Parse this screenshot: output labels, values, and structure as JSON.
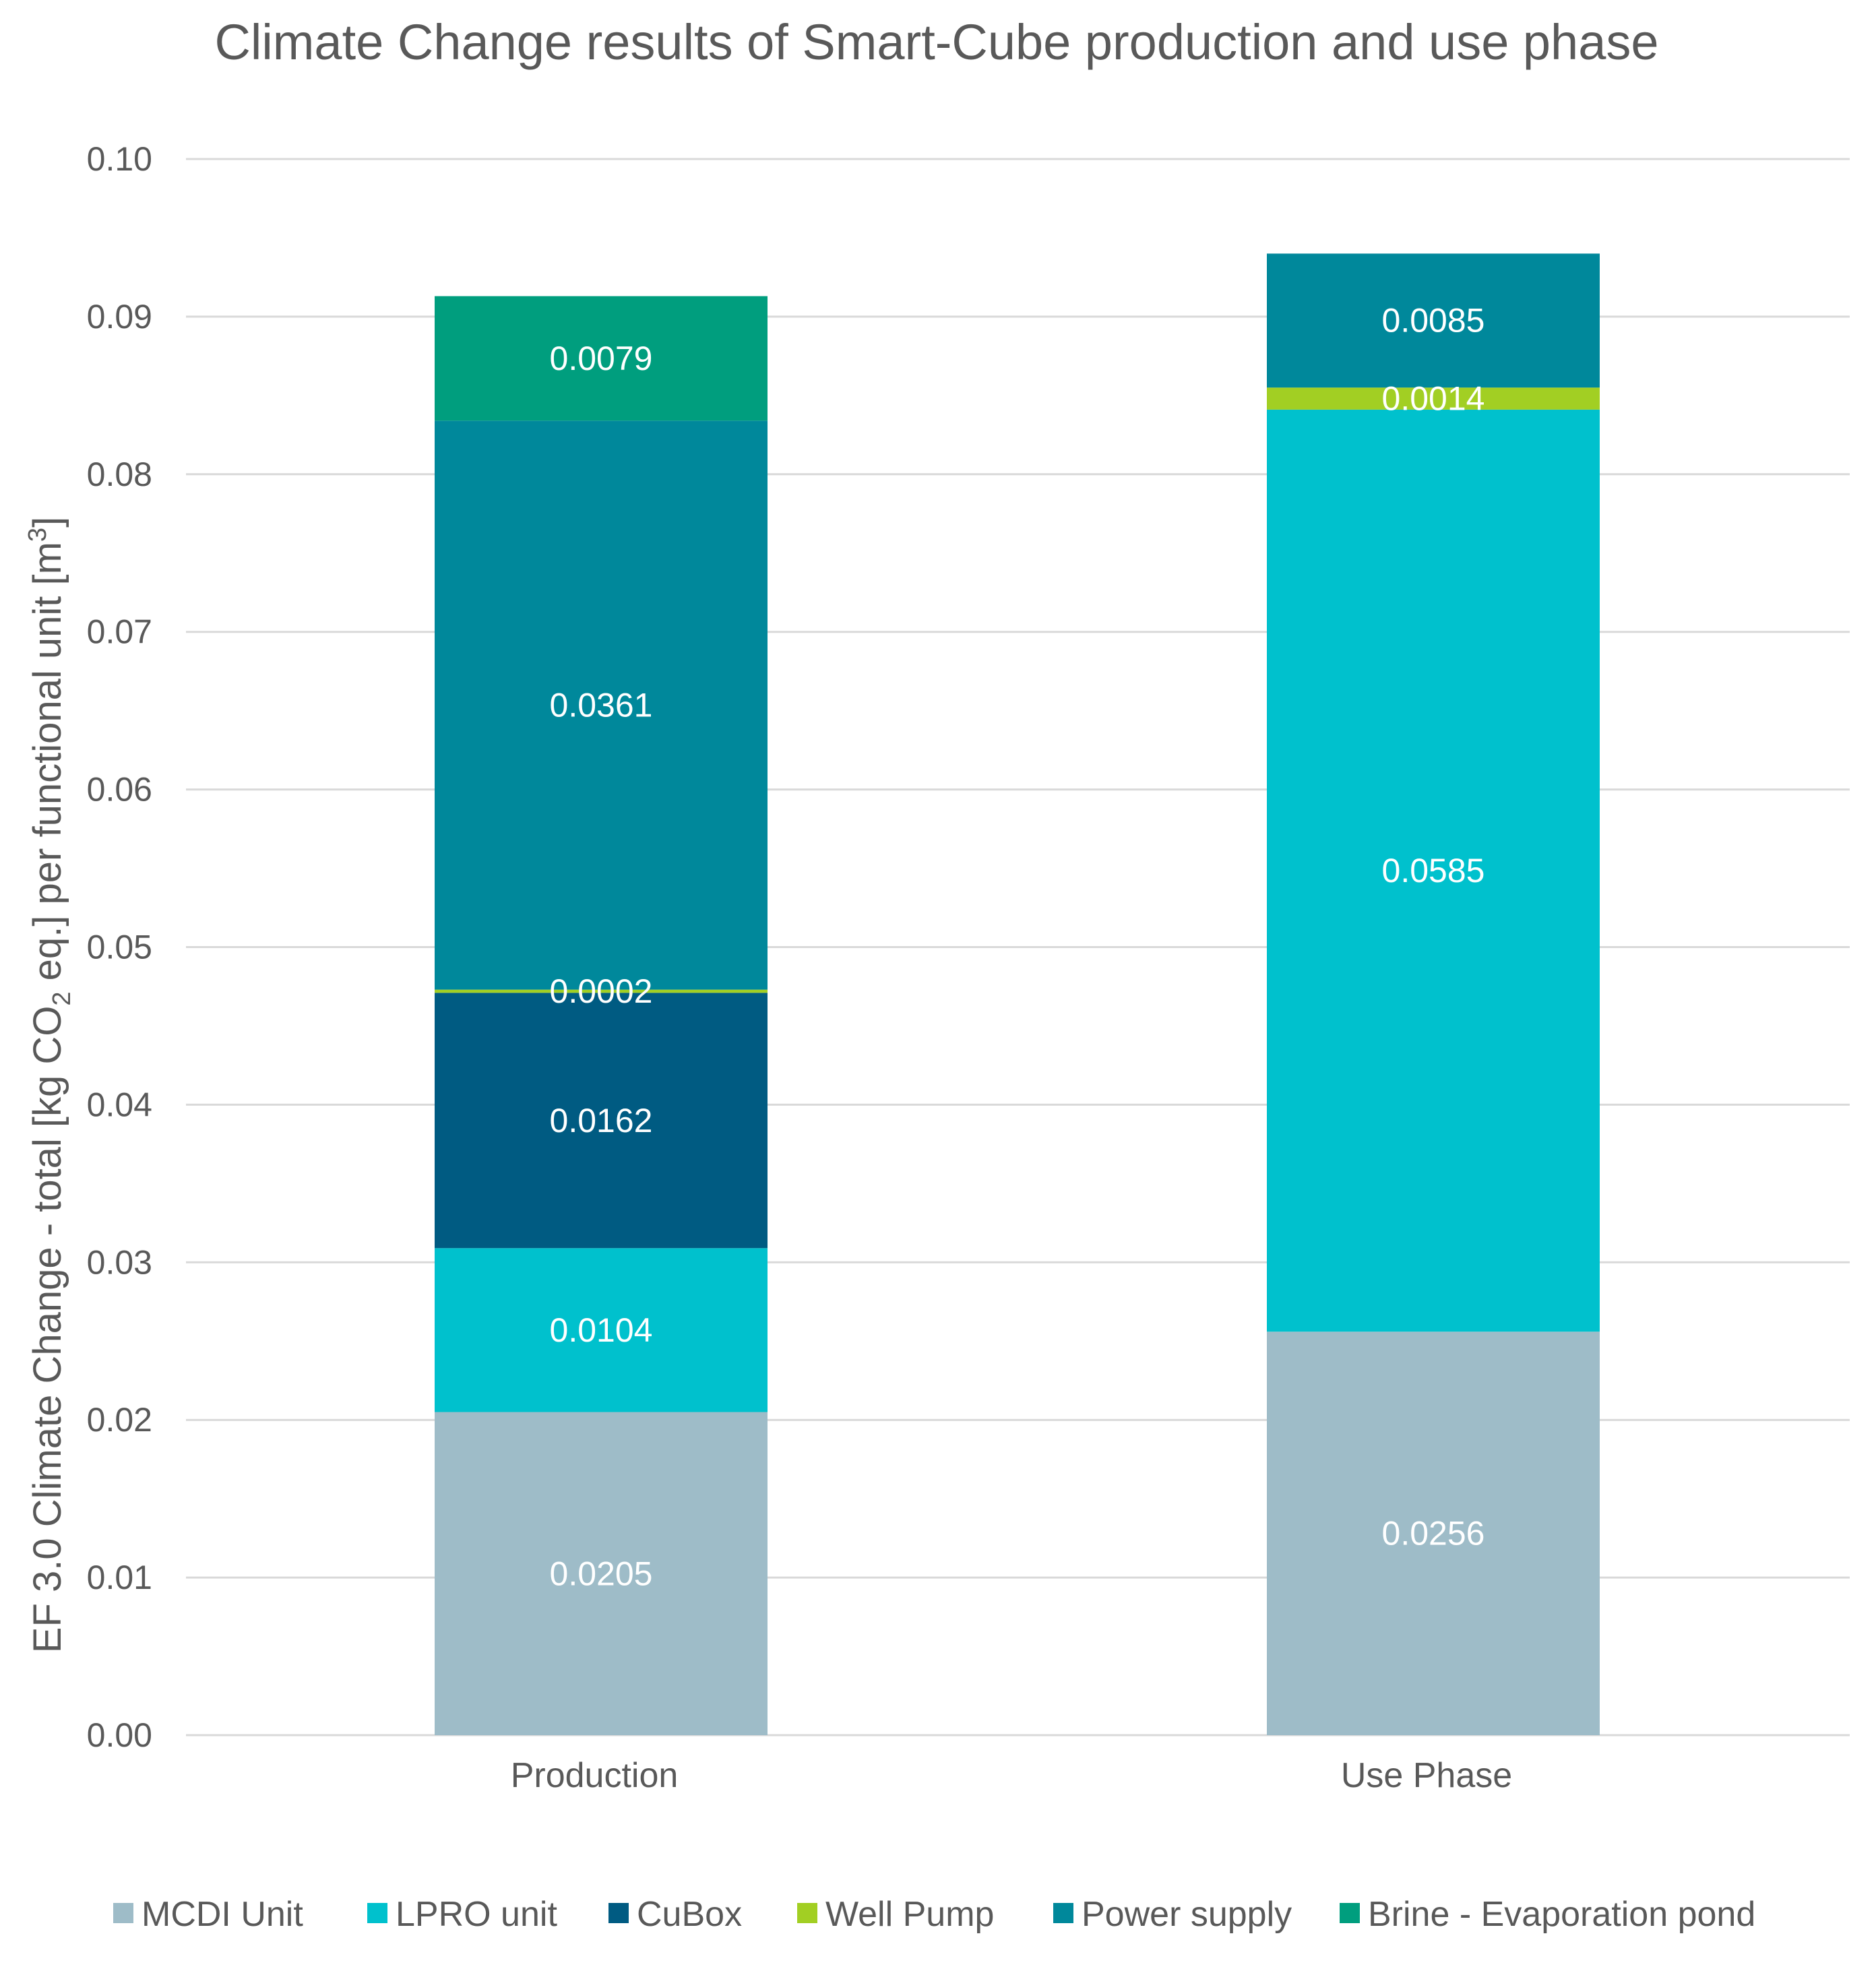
{
  "chart_data": {
    "type": "bar",
    "stacked": true,
    "title": "Climate Change results of Smart-Cube production and use phase",
    "ylabel": {
      "prefix": "EF  3.0 Climate Change - total [kg CO",
      "sub": "2",
      "middle": " eq.] per functional unit [m",
      "sup": "3",
      "suffix": "]"
    },
    "ylim": [
      0,
      0.1
    ],
    "yticks": [
      0,
      0.01,
      0.02,
      0.03,
      0.04,
      0.05,
      0.06,
      0.07,
      0.08,
      0.09,
      0.1
    ],
    "ytick_labels": [
      "0.00",
      "0.01",
      "0.02",
      "0.03",
      "0.04",
      "0.05",
      "0.06",
      "0.07",
      "0.08",
      "0.09",
      "0.10"
    ],
    "grid": true,
    "legend_position": "bottom",
    "categories": [
      "Production",
      "Use Phase"
    ],
    "series": [
      {
        "name": "MCDI Unit",
        "color": "#9ebcc8",
        "values": [
          0.0205,
          0.0256
        ],
        "labels": [
          "0.0205",
          "0.0256"
        ]
      },
      {
        "name": "LPRO unit",
        "color": "#00c1cd",
        "values": [
          0.0104,
          0.0585
        ],
        "labels": [
          "0.0104",
          "0.0585"
        ]
      },
      {
        "name": "CuBox",
        "color": "#005b82",
        "values": [
          0.0162,
          0
        ],
        "labels": [
          "0.0162",
          ""
        ]
      },
      {
        "name": "Well Pump",
        "color": "#a2cf23",
        "values": [
          0.0002,
          0.0014
        ],
        "labels": [
          "0.0002",
          "0.0014"
        ]
      },
      {
        "name": "Power supply",
        "color": "#00889b",
        "values": [
          0.0361,
          0.0085
        ],
        "labels": [
          "0.0361",
          "0.0085"
        ]
      },
      {
        "name": "Brine - Evaporation pond",
        "color": "#009e7e",
        "values": [
          0.0079,
          0
        ],
        "labels": [
          "0.0079",
          ""
        ]
      }
    ],
    "colors": {
      "text": "#595959",
      "grid": "#d9d9d9",
      "data_label": "#ffffff"
    }
  }
}
